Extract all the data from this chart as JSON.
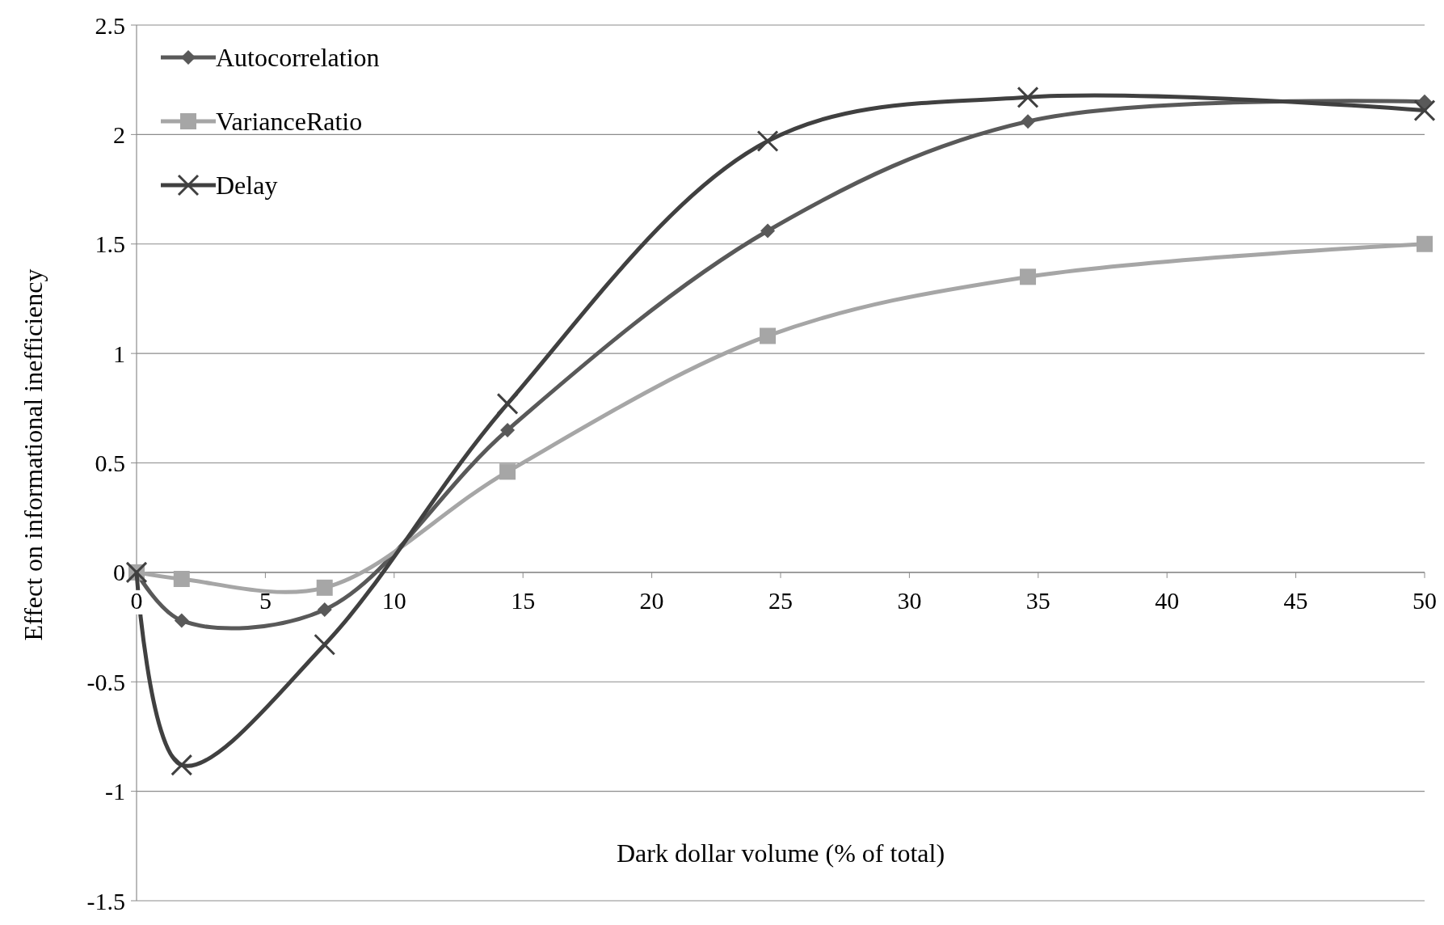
{
  "chart_data": {
    "type": "line",
    "xlabel": "Dark dollar volume (% of total)",
    "ylabel": "Effect on informational inefficiency",
    "x": [
      0,
      1.75,
      7.3,
      14.4,
      24.5,
      34.6,
      50
    ],
    "xlim": [
      0,
      50
    ],
    "xticks": [
      0,
      5,
      10,
      15,
      20,
      25,
      30,
      35,
      40,
      45,
      50
    ],
    "ylim": [
      -1.5,
      2.5
    ],
    "yticks": [
      -1.5,
      -1,
      -0.5,
      0,
      0.5,
      1,
      1.5,
      2,
      2.5
    ],
    "grid": "y",
    "legend": "top left",
    "line_style": "solid",
    "series": [
      {
        "name": "Autocorrelation",
        "color": "#595959",
        "marker": "diamond",
        "values": [
          0,
          -0.22,
          -0.17,
          0.65,
          1.56,
          2.06,
          2.15
        ]
      },
      {
        "name": "VarianceRatio",
        "color": "#a6a6a6",
        "marker": "square",
        "values": [
          0,
          -0.03,
          -0.07,
          0.46,
          1.08,
          1.35,
          1.5
        ]
      },
      {
        "name": "Delay",
        "color": "#404040",
        "marker": "cross",
        "values": [
          0,
          -0.88,
          -0.33,
          0.77,
          1.97,
          2.17,
          2.11
        ]
      }
    ]
  }
}
